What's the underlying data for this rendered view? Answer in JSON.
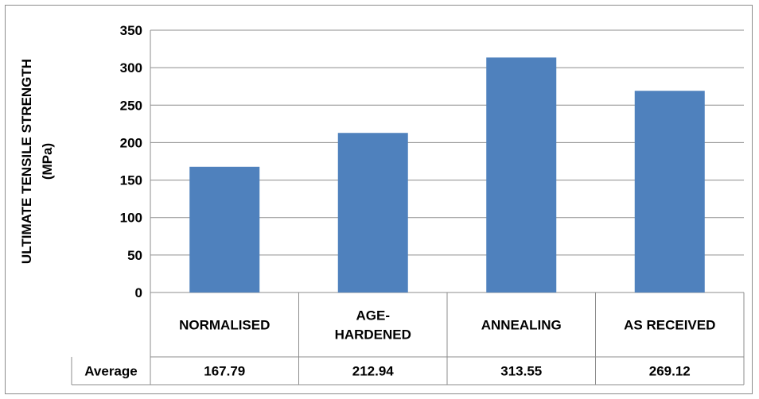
{
  "chart_data": {
    "type": "bar",
    "title": "",
    "xlabel": "",
    "ylabel": [
      "ULTIMATE TENSILE STRENGTH",
      "(MPa)"
    ],
    "categories": [
      [
        "NORMALISED"
      ],
      [
        "AGE-",
        "HARDENED"
      ],
      [
        "ANNEALING"
      ],
      [
        "AS RECEIVED"
      ]
    ],
    "series": [
      {
        "values": [
          167.79,
          212.94,
          313.55,
          269.12
        ],
        "color": "#4f81bd"
      }
    ],
    "ylim": [
      0,
      350
    ],
    "yticks": [
      0,
      50,
      100,
      150,
      200,
      250,
      300,
      350
    ],
    "grid": true,
    "data_table": {
      "row_label": "Average",
      "values": [
        "167.79",
        "212.94",
        "313.55",
        "269.12"
      ]
    }
  }
}
